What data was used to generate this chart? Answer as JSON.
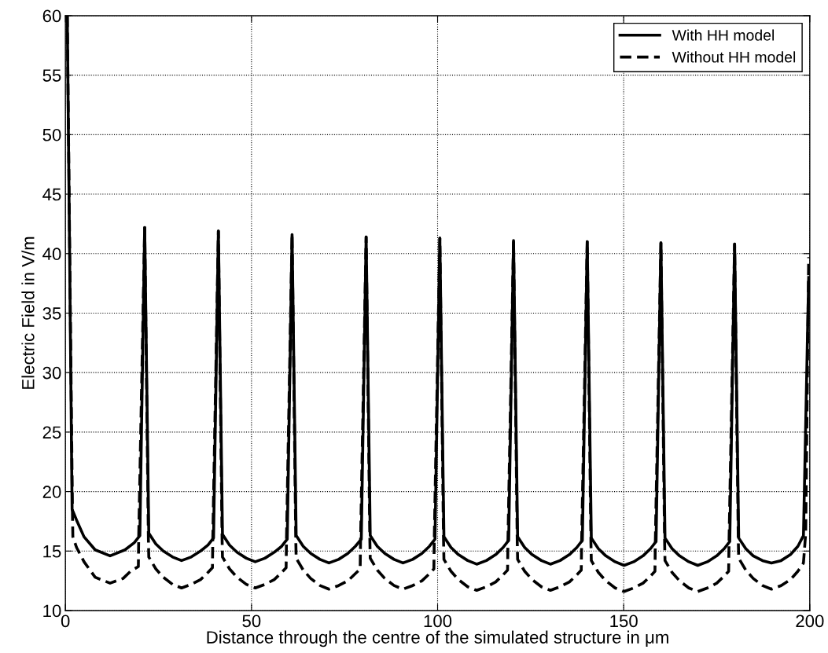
{
  "chart_data": {
    "type": "line",
    "xlabel": "Distance through the centre of the simulated structure in μm",
    "ylabel": "Electric Field in V/m",
    "xlim": [
      0,
      200
    ],
    "ylim": [
      10,
      60
    ],
    "xticks": [
      0,
      50,
      100,
      150,
      200
    ],
    "yticks": [
      10,
      15,
      20,
      25,
      30,
      35,
      40,
      45,
      50,
      55,
      60
    ],
    "grid": true,
    "legend": "top right",
    "series": [
      {
        "name": "With HH model",
        "color": "#000000",
        "line_style": "solid",
        "x": [
          0.5,
          1.8,
          3,
          5,
          8,
          12,
          16,
          18.5,
          20,
          21.3,
          22.4,
          24.3,
          26.3,
          28.8,
          31.2,
          33.8,
          36.3,
          38.3,
          39.8,
          41.1,
          42.2,
          44.1,
          46.1,
          48.6,
          51,
          53.6,
          56.1,
          58.1,
          59.6,
          60.9,
          62,
          63.9,
          65.9,
          68.4,
          70.8,
          73.4,
          75.9,
          77.9,
          79.5,
          80.8,
          81.9,
          83.8,
          85.8,
          88.3,
          90.7,
          93.3,
          95.8,
          97.8,
          99.3,
          100.6,
          101.7,
          103.6,
          105.6,
          108.1,
          110.5,
          113.1,
          115.6,
          117.6,
          119.1,
          120.4,
          121.5,
          123.4,
          125.4,
          127.9,
          130.3,
          132.9,
          135.4,
          137.4,
          138.9,
          140.2,
          141.3,
          143.2,
          145.2,
          147.7,
          150.1,
          152.7,
          155.2,
          157.2,
          158.7,
          160,
          161.1,
          163,
          165,
          167.5,
          169.9,
          172.5,
          175,
          177,
          178.5,
          179.8,
          180.9,
          182.8,
          184.8,
          187.3,
          189.7,
          192.3,
          194.8,
          196.8,
          198.3,
          199.7
        ],
        "values": [
          60,
          18.5,
          17.6,
          16.2,
          15.1,
          14.6,
          15.1,
          15.7,
          16.3,
          42.2,
          16.5,
          15.6,
          15.0,
          14.5,
          14.2,
          14.5,
          15.0,
          15.5,
          16.1,
          41.9,
          16.4,
          15.5,
          14.9,
          14.4,
          14.1,
          14.4,
          14.9,
          15.4,
          16.0,
          41.6,
          16.3,
          15.4,
          14.8,
          14.3,
          14.0,
          14.3,
          14.8,
          15.4,
          16.0,
          41.4,
          16.3,
          15.4,
          14.8,
          14.3,
          14.0,
          14.3,
          14.8,
          15.4,
          16.0,
          41.3,
          16.2,
          15.3,
          14.7,
          14.2,
          13.9,
          14.2,
          14.7,
          15.3,
          15.9,
          41.1,
          16.2,
          15.3,
          14.7,
          14.2,
          13.9,
          14.2,
          14.7,
          15.3,
          15.9,
          41.0,
          16.1,
          15.2,
          14.6,
          14.1,
          13.8,
          14.1,
          14.6,
          15.2,
          15.8,
          40.9,
          16.1,
          15.2,
          14.6,
          14.1,
          13.8,
          14.1,
          14.6,
          15.2,
          15.8,
          40.8,
          16.1,
          15.2,
          14.6,
          14.2,
          14.0,
          14.2,
          14.7,
          15.4,
          16.3,
          38
        ]
      },
      {
        "name": "Without HH model",
        "color": "#000000",
        "line_style": "dashed",
        "x": [
          0.5,
          1.9,
          2.0,
          3,
          5,
          8,
          12,
          15.5,
          17.5,
          19.6,
          19.7,
          21.3,
          22.3,
          22.4,
          24.3,
          26.3,
          28.8,
          31.2,
          33.8,
          36.3,
          38.3,
          39.5,
          39.6,
          41.1,
          42.1,
          42.2,
          44.1,
          46.1,
          48.6,
          51,
          53.6,
          56.1,
          58.1,
          59.3,
          59.4,
          60.9,
          61.9,
          62,
          63.9,
          65.9,
          68.4,
          70.8,
          73.4,
          75.9,
          77.9,
          79.2,
          79.3,
          80.8,
          81.8,
          81.9,
          83.8,
          85.8,
          88.3,
          90.7,
          93.3,
          95.8,
          97.8,
          99,
          99.1,
          100.6,
          101.6,
          101.7,
          103.6,
          105.6,
          108.1,
          110.5,
          113.1,
          115.6,
          117.6,
          118.8,
          118.9,
          120.4,
          121.4,
          121.5,
          123.4,
          125.4,
          127.9,
          130.3,
          132.9,
          135.4,
          137.4,
          138.6,
          138.7,
          140.2,
          141.2,
          141.3,
          143.2,
          145.2,
          147.7,
          150.1,
          152.7,
          155.2,
          157.2,
          158.4,
          158.5,
          160,
          161,
          161.1,
          163,
          165,
          167.5,
          169.9,
          172.5,
          175,
          177,
          178.2,
          178.3,
          179.8,
          180.8,
          180.9,
          182.8,
          184.8,
          187.3,
          189.7,
          192.3,
          194.8,
          196.8,
          198.3,
          198.9,
          199.7
        ],
        "values": [
          60,
          18,
          16.2,
          15.3,
          14.1,
          12.8,
          12.3,
          12.7,
          13.3,
          13.7,
          16.3,
          42.2,
          16.0,
          14.5,
          13.5,
          12.8,
          12.2,
          11.9,
          12.2,
          12.6,
          13.2,
          13.6,
          16.0,
          41.9,
          16.0,
          14.5,
          13.5,
          12.8,
          12.2,
          11.9,
          12.2,
          12.6,
          13.2,
          13.6,
          16.0,
          41.6,
          15.9,
          14.4,
          13.4,
          12.7,
          12.1,
          11.8,
          12.1,
          12.5,
          13.1,
          13.5,
          15.9,
          41.4,
          15.9,
          14.4,
          13.4,
          12.7,
          12.1,
          11.8,
          12.1,
          12.5,
          13.1,
          13.5,
          15.9,
          41.3,
          15.8,
          14.3,
          13.3,
          12.6,
          12.0,
          11.7,
          12.0,
          12.4,
          13.0,
          13.4,
          15.8,
          41.1,
          15.8,
          14.3,
          13.3,
          12.6,
          12.0,
          11.7,
          12.0,
          12.4,
          13.0,
          13.4,
          15.8,
          41.0,
          15.7,
          14.2,
          13.2,
          12.5,
          11.9,
          11.6,
          11.9,
          12.3,
          12.9,
          13.3,
          15.7,
          40.9,
          15.7,
          14.2,
          13.2,
          12.5,
          11.9,
          11.6,
          11.9,
          12.3,
          12.9,
          13.3,
          15.7,
          40.8,
          15.8,
          14.4,
          13.4,
          12.7,
          12.1,
          11.8,
          12.1,
          12.6,
          13.3,
          14.0,
          16.5,
          39.7
        ]
      }
    ]
  }
}
